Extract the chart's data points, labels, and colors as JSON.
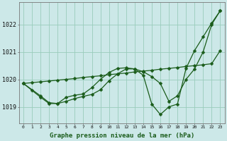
{
  "background_color": "#cce8e8",
  "grid_color": "#99ccbb",
  "line_color": "#1a5c1a",
  "marker_color": "#1a5c1a",
  "title": "Graphe pression niveau de la mer (hPa)",
  "xlim": [
    -0.5,
    23.5
  ],
  "ylim": [
    1018.4,
    1022.8
  ],
  "yticks": [
    1019,
    1020,
    1021,
    1022
  ],
  "xticks": [
    0,
    1,
    2,
    3,
    4,
    5,
    6,
    7,
    8,
    9,
    10,
    11,
    12,
    13,
    14,
    15,
    16,
    17,
    18,
    19,
    20,
    21,
    22,
    23
  ],
  "line1_x": [
    0,
    1,
    2,
    3,
    4,
    5,
    6,
    7,
    8,
    9,
    10,
    11,
    12,
    13,
    14,
    15,
    16,
    17,
    18,
    19,
    20,
    21,
    22,
    23
  ],
  "line1_y": [
    1019.85,
    1019.88,
    1019.91,
    1019.94,
    1019.97,
    1020.0,
    1020.03,
    1020.07,
    1020.1,
    1020.13,
    1020.17,
    1020.2,
    1020.23,
    1020.27,
    1020.3,
    1020.33,
    1020.37,
    1020.4,
    1020.43,
    1020.47,
    1020.5,
    1020.53,
    1020.57,
    1021.05
  ],
  "line2_x": [
    0,
    1,
    2,
    3,
    4,
    5,
    6,
    7,
    8,
    9,
    10,
    11,
    12,
    13,
    14,
    15,
    16,
    17,
    18,
    19,
    20,
    21,
    22,
    23
  ],
  "line2_y": [
    1019.85,
    1019.6,
    1019.35,
    1019.12,
    1019.12,
    1019.35,
    1019.42,
    1019.47,
    1019.7,
    1020.0,
    1020.25,
    1020.4,
    1020.42,
    1020.38,
    1020.15,
    1019.1,
    1018.72,
    1019.0,
    1019.1,
    1020.4,
    1021.05,
    1021.55,
    1022.05,
    1022.5
  ],
  "line3_x": [
    0,
    2,
    3,
    4,
    5,
    6,
    7,
    8,
    9,
    10,
    11,
    12,
    13,
    14,
    15,
    16,
    17,
    18,
    19,
    20,
    21,
    22,
    23
  ],
  "line3_y": [
    1019.85,
    1019.4,
    1019.15,
    1019.12,
    1019.2,
    1019.3,
    1019.38,
    1019.45,
    1019.62,
    1019.95,
    1020.2,
    1020.38,
    1020.38,
    1020.28,
    1020.1,
    1019.85,
    1019.2,
    1019.4,
    1020.0,
    1020.38,
    1021.0,
    1022.0,
    1022.5
  ]
}
